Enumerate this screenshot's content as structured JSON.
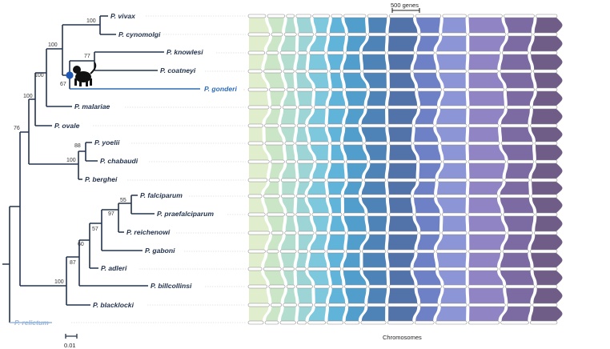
{
  "figure": {
    "scale_bar_label": "500 genes",
    "tree_scale_label": "0.01",
    "x_axis_label": "Chromosomes"
  },
  "species": [
    {
      "name": "P. vivax",
      "style": "normal"
    },
    {
      "name": "P. cynomolgi",
      "style": "normal"
    },
    {
      "name": "P. knowlesi",
      "style": "normal"
    },
    {
      "name": "P. coatneyi",
      "style": "normal"
    },
    {
      "name": "P. gonderi",
      "style": "highlight"
    },
    {
      "name": "P. malariae",
      "style": "normal"
    },
    {
      "name": "P. ovale",
      "style": "normal"
    },
    {
      "name": "P. yoelii",
      "style": "normal"
    },
    {
      "name": "P. chabaudi",
      "style": "normal"
    },
    {
      "name": "P. berghei",
      "style": "normal"
    },
    {
      "name": "P. falciparum",
      "style": "normal"
    },
    {
      "name": "P. praefalciparum",
      "style": "normal"
    },
    {
      "name": "P. reichenowi",
      "style": "normal"
    },
    {
      "name": "P. gaboni",
      "style": "normal"
    },
    {
      "name": "P. adleri",
      "style": "normal"
    },
    {
      "name": "P. billcollinsi",
      "style": "normal"
    },
    {
      "name": "P. blacklocki",
      "style": "normal"
    },
    {
      "name": "P. relictum",
      "style": "outgroup"
    }
  ],
  "bootstrap": {
    "vivax_cynomolgi": "100",
    "knowlesi_coatneyi": "77",
    "knowlesi_coatneyi_gonderi": "67",
    "vivax_group": "100",
    "with_malariae": "100",
    "with_ovale": "100",
    "mammalian_root": "76",
    "yoelii_chabaudi": "88",
    "rodent": "100",
    "falciparum_praefalciparum": "55",
    "with_reichenowi": "97",
    "with_gaboni": "57",
    "with_adleri": "60",
    "with_billcollinsi": "87",
    "laverania": "100"
  },
  "chromosome_colors": [
    "#dcecc6",
    "#c4e3bf",
    "#a9d9c8",
    "#8fcfd1",
    "#6cc0d9",
    "#4aa9d4",
    "#3990c4",
    "#3572ae",
    "#3a5e9e",
    "#5a6fbf",
    "#7c87d0",
    "#8273bd",
    "#6a5595",
    "#5b4776"
  ],
  "colors": {
    "branch": "#24344f",
    "highlight": "#2f6db6",
    "outgroup": "#9ab7d9",
    "node_marker": "#1f57b5"
  }
}
